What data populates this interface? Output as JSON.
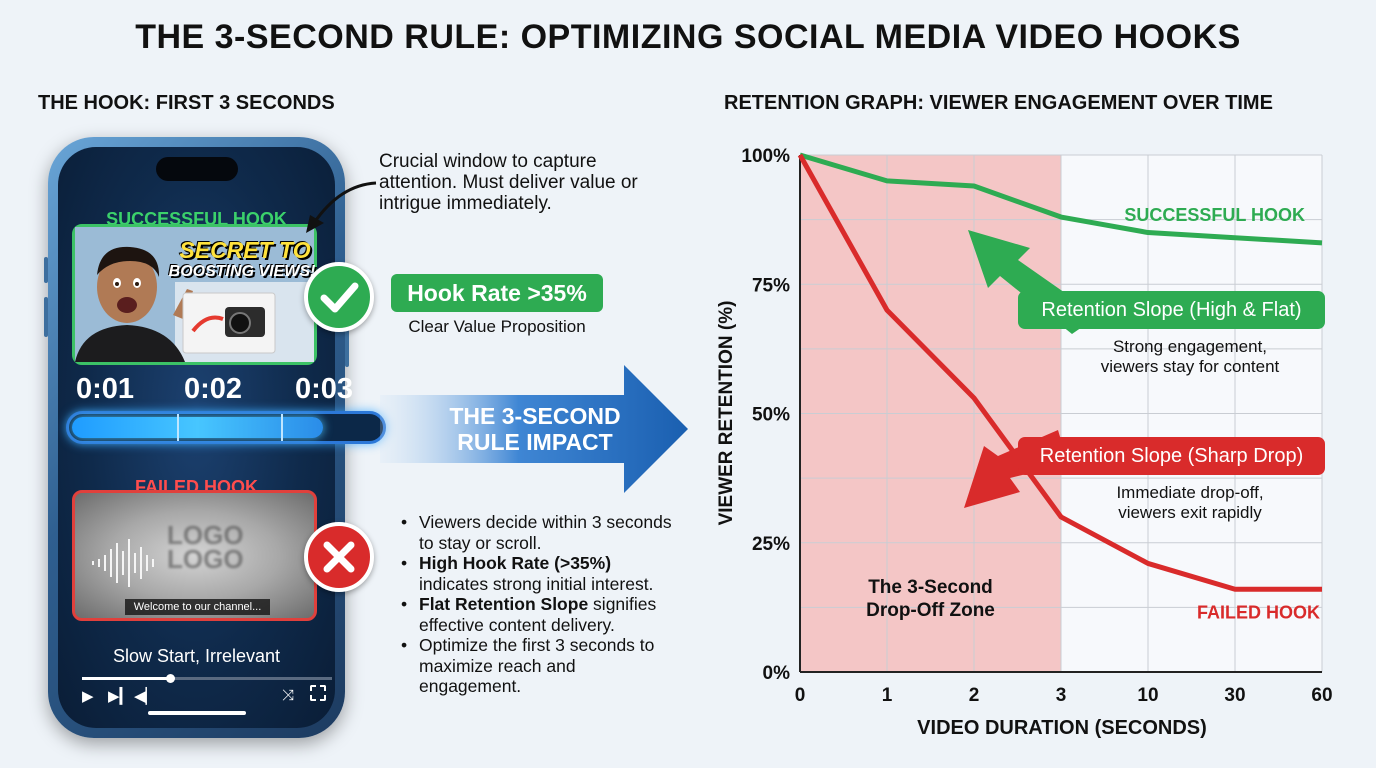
{
  "title": "THE 3-SECOND RULE: OPTIMIZING SOCIAL MEDIA VIDEO HOOKS",
  "left_section": {
    "title": "THE HOOK: FIRST 3 SECONDS",
    "crucial_note": "Crucial window to capture attention. Must deliver value or intrigue immediately.",
    "successful_label": "SUCCESSFUL HOOK",
    "thumbnail_text_line1": "SECRET TO",
    "thumbnail_text_line2": "BOOSTING VIEWS!",
    "time_labels": [
      "0:01",
      "0:02",
      "0:03"
    ],
    "failed_label": "FAILED HOOK",
    "failed_logo_text": "LOGO",
    "failed_subtitle": "Welcome to our channel...",
    "failed_caption": "Slow Start, Irrelevant",
    "hook_rate": "Hook Rate >35%",
    "value_prop": "Clear Value Proposition",
    "progress_fraction": 0.8,
    "scrub_fraction": 0.35,
    "icons": {
      "success": "check-icon",
      "failure": "x-icon",
      "play": "play-icon",
      "next": "skip-next-icon",
      "volume": "volume-icon",
      "shuffle": "shuffle-icon",
      "fullscreen": "fullscreen-icon"
    }
  },
  "impact_arrow": {
    "line1": "THE 3-SECOND",
    "line2": "RULE IMPACT"
  },
  "bullets": [
    {
      "bold": "",
      "text": "Viewers decide within 3 seconds to stay or scroll."
    },
    {
      "bold": "High Hook Rate (>35%)",
      "text": " indicates strong initial interest."
    },
    {
      "bold": "Flat Retention Slope",
      "text": " signifies effective content delivery."
    },
    {
      "bold": "",
      "text": "Optimize the first 3 seconds to maximize reach and engagement."
    }
  ],
  "chart_data": {
    "type": "line",
    "title": "RETENTION GRAPH: VIEWER ENGAGEMENT OVER TIME",
    "xlabel": "VIDEO DURATION (SECONDS)",
    "ylabel": "VIEWER RETENTION (%)",
    "x": [
      0,
      1,
      2,
      3,
      10,
      30,
      60
    ],
    "x_tick_labels": [
      "0",
      "1",
      "2",
      "3",
      "10",
      "30",
      "60"
    ],
    "y_ticks": [
      0,
      25,
      50,
      75,
      100
    ],
    "y_tick_labels": [
      "0%",
      "25%",
      "50%",
      "75%",
      "100%"
    ],
    "ylim": [
      0,
      100
    ],
    "grid": true,
    "series": [
      {
        "name": "SUCCESSFUL HOOK",
        "color": "#2eab52",
        "values": [
          100,
          95,
          94,
          88,
          85,
          84,
          83
        ]
      },
      {
        "name": "FAILED HOOK",
        "color": "#d92b2b",
        "values": [
          100,
          70,
          53,
          30,
          21,
          16,
          16
        ]
      }
    ],
    "shaded_zone": {
      "from": 0,
      "to": 3,
      "label_line1": "The 3-Second",
      "label_line2": "Drop-Off Zone",
      "color": "#f4c6c6"
    },
    "annotations": [
      {
        "label": "Retention Slope (High & Flat)",
        "note_line1": "Strong engagement,",
        "note_line2": "viewers stay for content",
        "color": "#2eab52"
      },
      {
        "label": "Retention Slope (Sharp Drop)",
        "note_line1": "Immediate drop-off,",
        "note_line2": "viewers exit rapidly",
        "color": "#d92b2b"
      }
    ]
  }
}
